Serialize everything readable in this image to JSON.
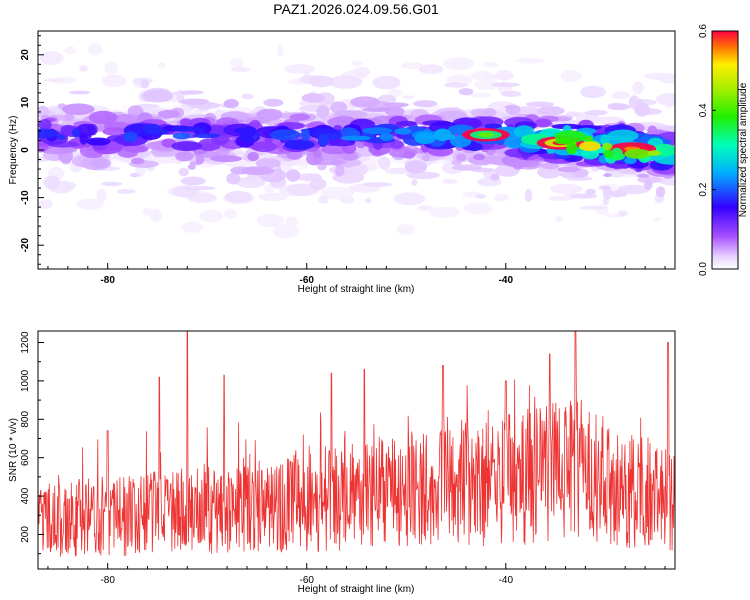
{
  "title": "PAZ1.2026.024.09.56.G01",
  "chart_data": [
    {
      "type": "heatmap",
      "xlabel": "Height of straight line (km)",
      "ylabel": "Frequency (Hz)",
      "xlim": [
        -87,
        -23
      ],
      "ylim": [
        -25,
        25
      ],
      "x_ticks": [
        -80,
        -60,
        -40
      ],
      "x_tick_labels": [
        "-80",
        "-60",
        "-40"
      ],
      "y_ticks": [
        -20,
        -10,
        0,
        10,
        20
      ],
      "y_tick_labels": [
        "-20",
        "-10",
        "0",
        "10",
        "20"
      ],
      "ridge": {
        "x": [
          -86,
          -80,
          -70,
          -60,
          -50,
          -40,
          -30,
          -23
        ],
        "center_hz": [
          3.5,
          3.2,
          3.0,
          2.6,
          3.2,
          2.8,
          1.0,
          -1.0
        ],
        "peak_amplitude": [
          0.2,
          0.2,
          0.22,
          0.22,
          0.25,
          0.3,
          0.6,
          0.4
        ]
      },
      "hotspots": [
        {
          "x": -34.5,
          "hz": 1.5,
          "amplitude": 0.6
        },
        {
          "x": -27.3,
          "hz": 0.2,
          "amplitude": 0.55
        },
        {
          "x": -42.0,
          "hz": 3.2,
          "amplitude": 0.42
        }
      ],
      "colorbar": {
        "label": "Normalized spectral amplitude",
        "range": [
          0.0,
          0.6
        ],
        "ticks": [
          0.0,
          0.2,
          0.4,
          0.6
        ],
        "tick_labels": [
          "0.0",
          "0.2",
          "0.4",
          "0.6"
        ]
      }
    },
    {
      "type": "line",
      "xlabel": "Height of straight line (km)",
      "ylabel": "SNR (10 * v/v)",
      "xlim": [
        -87,
        -23
      ],
      "ylim": [
        20,
        1260
      ],
      "x_ticks": [
        -80,
        -60,
        -40
      ],
      "x_tick_labels": [
        "-80",
        "-60",
        "-40"
      ],
      "y_ticks": [
        200,
        400,
        600,
        800,
        1000,
        1200
      ],
      "y_tick_labels": [
        "200",
        "400",
        "600",
        "800",
        "1000",
        "1200"
      ],
      "series": [
        {
          "name": "SNR",
          "color": "#ee3333",
          "x": [
            -87,
            -85,
            -83,
            -81,
            -79,
            -77,
            -75,
            -73,
            -71,
            -69,
            -67,
            -65,
            -63,
            -61,
            -59,
            -57,
            -55,
            -53,
            -51,
            -49,
            -47,
            -45,
            -43,
            -41,
            -39,
            -37,
            -35,
            -33,
            -31,
            -29,
            -27,
            -25,
            -23
          ],
          "values": [
            300,
            320,
            330,
            340,
            350,
            355,
            360,
            370,
            380,
            390,
            400,
            410,
            420,
            430,
            440,
            460,
            470,
            480,
            500,
            510,
            520,
            530,
            540,
            550,
            560,
            580,
            600,
            620,
            560,
            520,
            500,
            460,
            420
          ],
          "peaks": [
            {
              "x": -80.0,
              "value": 740
            },
            {
              "x": -74.8,
              "value": 1020
            },
            {
              "x": -72.0,
              "value": 1260
            },
            {
              "x": -68.3,
              "value": 1030
            },
            {
              "x": -57.5,
              "value": 1040
            },
            {
              "x": -54.2,
              "value": 1060
            },
            {
              "x": -46.3,
              "value": 1080
            },
            {
              "x": -40.0,
              "value": 1000
            },
            {
              "x": -35.6,
              "value": 1140
            },
            {
              "x": -33.0,
              "value": 1260
            },
            {
              "x": -23.7,
              "value": 1200
            }
          ]
        }
      ]
    }
  ]
}
